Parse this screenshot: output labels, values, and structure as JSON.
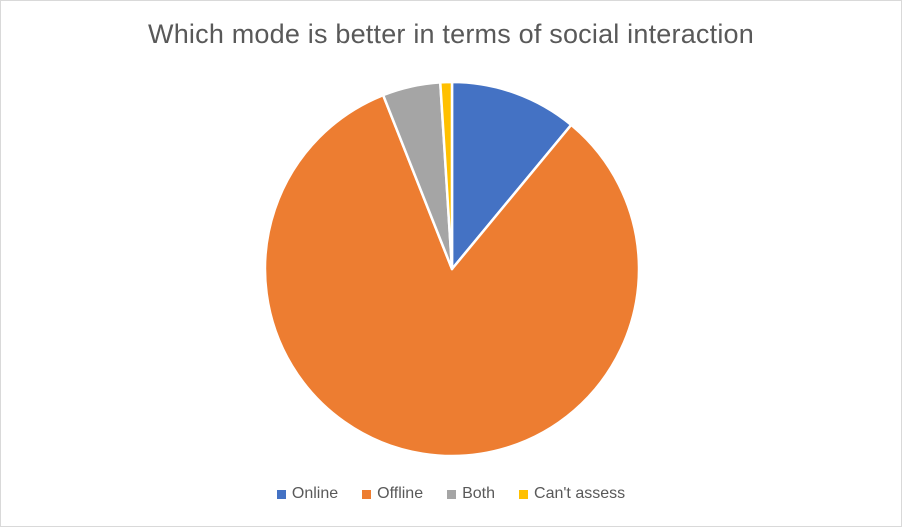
{
  "chart_data": {
    "type": "pie",
    "title": "Which mode is better in terms of social interaction",
    "categories": [
      "Online",
      "Offline",
      "Both",
      "Can't assess"
    ],
    "values": [
      11,
      83,
      5,
      1
    ],
    "colors": [
      "#4472c4",
      "#ed7d31",
      "#a5a5a5",
      "#ffc000"
    ],
    "legend_position": "bottom",
    "start_angle": "12 o'clock, clockwise"
  }
}
